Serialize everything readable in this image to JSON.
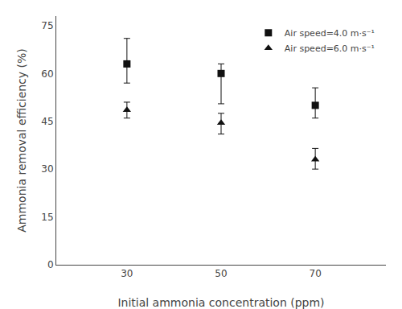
{
  "chart_data": {
    "type": "scatter",
    "x": [
      30,
      50,
      70
    ],
    "series": [
      {
        "name": "Air speed=4.0 m·s⁻¹",
        "color": "#111111",
        "marker": "square",
        "values": [
          63.0,
          60.0,
          50.0
        ],
        "error_low": [
          6.0,
          9.5,
          4.0
        ],
        "error_high": [
          8.0,
          3.0,
          5.5
        ]
      },
      {
        "name": "Air speed=6.0 m·s⁻¹",
        "color": "#111111",
        "marker": "triangle-up",
        "values": [
          48.5,
          44.5,
          33.0
        ],
        "error_low": [
          2.5,
          3.5,
          3.0
        ],
        "error_high": [
          2.5,
          3.0,
          3.5
        ]
      }
    ],
    "xlabel": "Initial ammonia concentration (ppm)",
    "ylabel": "Ammonia removal efficiency (%)",
    "xlim": [
      15,
      85
    ],
    "ylim": [
      0,
      78
    ],
    "xticks": [
      30,
      50,
      70
    ],
    "yticks": [
      0,
      15,
      30,
      45,
      60,
      75
    ],
    "legend": "upper right",
    "grid": false
  }
}
